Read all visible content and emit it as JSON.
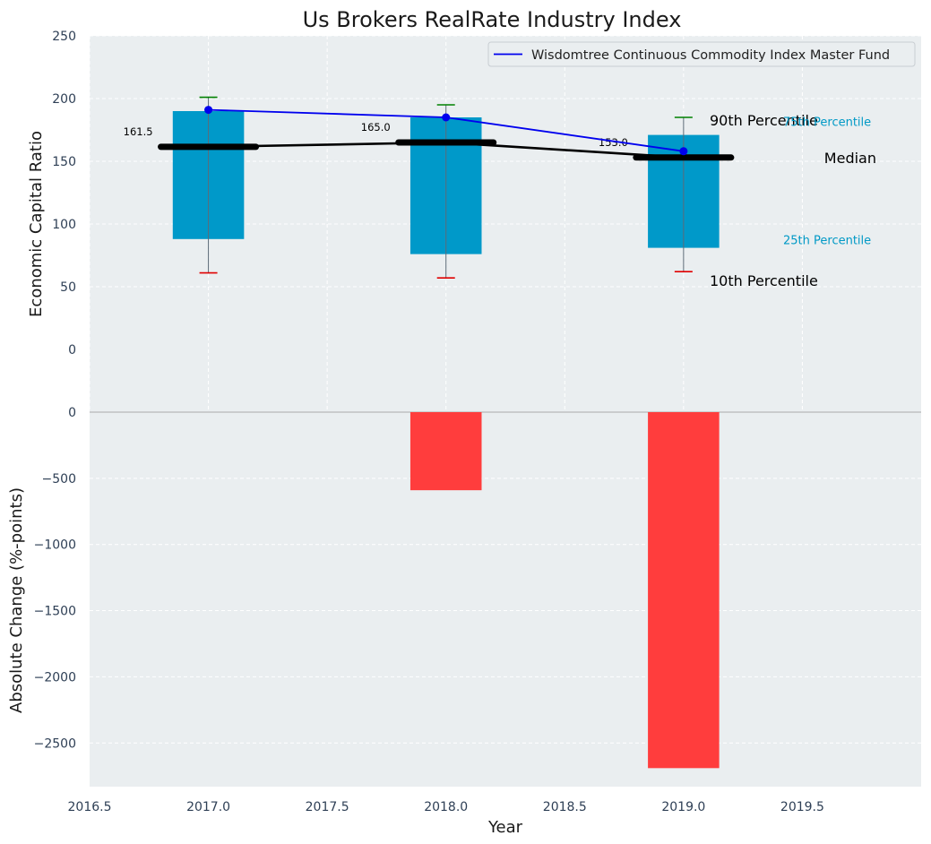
{
  "chart_data": [
    {
      "type": "bar",
      "title": "Us Brokers RealRate Industry Index",
      "ylabel": "Economic Capital Ratio",
      "xlim": [
        2016.5,
        2020.0
      ],
      "ylim": [
        -50,
        250
      ],
      "x_ticks": [
        "2016.5",
        "2017.0",
        "2017.5",
        "2018.0",
        "2018.5",
        "2019.0",
        "2019.5"
      ],
      "y_ticks": [
        "0",
        "50",
        "100",
        "150",
        "200",
        "250"
      ],
      "grid": true,
      "legend_position": "top-right",
      "years": [
        2017,
        2018,
        2019
      ],
      "percentiles": {
        "p10": [
          61,
          57,
          62
        ],
        "p25": [
          88,
          76,
          81
        ],
        "median": [
          161.5,
          165.0,
          153.0
        ],
        "p75": [
          190,
          185,
          171
        ],
        "p90": [
          201,
          195,
          185
        ]
      },
      "median_labels": [
        "161.5",
        "165.0",
        "153.0"
      ],
      "series": [
        {
          "name": "Wisdomtree Continuous Commodity Index Master Fund",
          "values": [
            191,
            185,
            158
          ]
        }
      ],
      "annotations": {
        "p90": "90th Percentile",
        "p75": "75th Percentile",
        "median": "Median",
        "p25": "25th Percentile",
        "p10": "10th Percentile"
      },
      "colors": {
        "box": "#0099c9",
        "series": "#0000ee",
        "median": "#000000",
        "p90_cap": "#008000",
        "p10_cap": "#e00000",
        "background": "#eaeef0"
      }
    },
    {
      "type": "bar",
      "xlabel": "Year",
      "ylabel": "Absolute Change (%-points)",
      "xlim": [
        2016.5,
        2020.0
      ],
      "ylim": [
        -2830,
        0
      ],
      "y_ticks": [
        "0",
        "−500",
        "−1000",
        "−1500",
        "−2000",
        "−2500"
      ],
      "x": [
        2017,
        2018,
        2019
      ],
      "values": [
        0,
        -590,
        -2690
      ],
      "colors": {
        "bar": "#ff3d3d"
      }
    }
  ]
}
